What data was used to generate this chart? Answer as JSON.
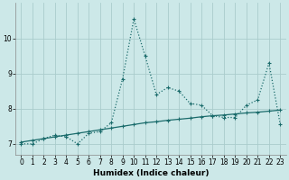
{
  "xlabel": "Humidex (Indice chaleur)",
  "ylabel": "",
  "bg_color": "#cce8e8",
  "grid_color": "#aacccc",
  "line_color": "#1a6b6b",
  "xlim": [
    -0.5,
    23.5
  ],
  "ylim": [
    6.7,
    11.0
  ],
  "xticks": [
    0,
    1,
    2,
    3,
    4,
    5,
    6,
    7,
    8,
    9,
    10,
    11,
    12,
    13,
    14,
    15,
    16,
    17,
    18,
    19,
    20,
    21,
    22,
    23
  ],
  "yticks": [
    7,
    8,
    9,
    10
  ],
  "series1_x": [
    0,
    1,
    2,
    3,
    4,
    5,
    6,
    7,
    8,
    9,
    10,
    11,
    12,
    13,
    14,
    15,
    16,
    17,
    18,
    19,
    20,
    21,
    22,
    23
  ],
  "series1_y": [
    7.0,
    7.0,
    7.15,
    7.25,
    7.2,
    7.0,
    7.3,
    7.35,
    7.6,
    8.85,
    10.55,
    9.5,
    8.4,
    8.6,
    8.5,
    8.15,
    8.1,
    7.8,
    7.75,
    7.75,
    8.1,
    8.25,
    9.3,
    7.55
  ],
  "series2_x": [
    0,
    1,
    2,
    3,
    4,
    5,
    6,
    7,
    8,
    9,
    10,
    11,
    12,
    13,
    14,
    15,
    16,
    17,
    18,
    19,
    20,
    21,
    22,
    23
  ],
  "series2_y": [
    7.05,
    7.1,
    7.15,
    7.2,
    7.25,
    7.3,
    7.35,
    7.4,
    7.45,
    7.5,
    7.55,
    7.6,
    7.63,
    7.67,
    7.7,
    7.73,
    7.77,
    7.8,
    7.82,
    7.85,
    7.88,
    7.9,
    7.93,
    7.96
  ],
  "marker_size": 3,
  "line_width": 0.9,
  "label_fontsize": 6.5,
  "tick_fontsize": 5.5
}
